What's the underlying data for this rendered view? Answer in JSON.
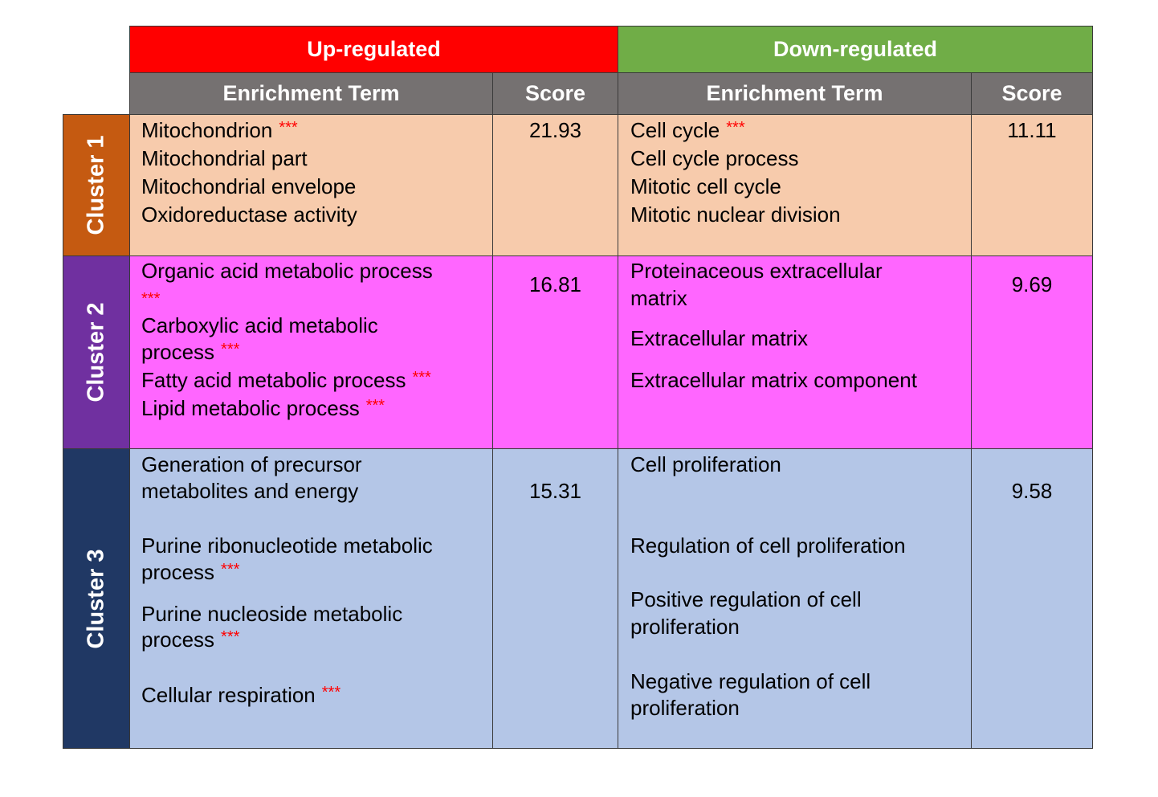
{
  "header": {
    "up_label": "Up-regulated",
    "down_label": "Down-regulated",
    "term_col": "Enrichment Term",
    "score_col": "Score"
  },
  "colors": {
    "up_band": "#ff0000",
    "down_band": "#70ad47",
    "column_header": "#757171",
    "cluster1_side": "#c55a11",
    "cluster1_body": "#f7cbac",
    "cluster2_side": "#7030a0",
    "cluster2_body": "#ff66ff",
    "cluster3_side": "#203864",
    "cluster3_body": "#b4c6e7",
    "significance": "#ff0000"
  },
  "significance_marker": "***",
  "clusters": [
    {
      "label": "Cluster 1",
      "up_score": "21.93",
      "down_score": "11.11",
      "up_terms": [
        {
          "line1": "Mitochondrion",
          "starred": true
        },
        {
          "line1": "Mitochondrial part",
          "starred": false
        },
        {
          "line1": "Mitochondrial envelope",
          "starred": false
        },
        {
          "line1": "Oxidoreductase activity",
          "starred": false
        }
      ],
      "down_terms": [
        {
          "line1": "Cell cycle",
          "starred": true
        },
        {
          "line1": "Cell cycle process",
          "starred": false
        },
        {
          "line1": "Mitotic cell cycle",
          "starred": false
        },
        {
          "line1": "Mitotic nuclear division",
          "starred": false
        }
      ]
    },
    {
      "label": "Cluster 2",
      "up_score": "16.81",
      "down_score": "9.69",
      "up_terms": [
        {
          "line1": "Organic acid metabolic process",
          "starred": true
        },
        {
          "line1": "Carboxylic acid metabolic",
          "line2": "process",
          "starred": true
        },
        {
          "line1": "Fatty acid metabolic process",
          "starred": true
        },
        {
          "line1": "Lipid metabolic process",
          "starred": true
        }
      ],
      "down_terms": [
        {
          "line1": "Proteinaceous extracellular",
          "line2": "matrix",
          "starred": false
        },
        {
          "line1": "Extracellular matrix",
          "starred": false
        },
        {
          "line1": "Extracellular matrix component",
          "starred": false
        }
      ]
    },
    {
      "label": "Cluster 3",
      "up_score": "15.31",
      "down_score": "9.58",
      "up_terms": [
        {
          "line1": "Generation of precursor",
          "line2": "metabolites and energy",
          "starred": false
        },
        {
          "line1": "Purine ribonucleotide metabolic",
          "line2": "process",
          "starred": true
        },
        {
          "line1": "Purine nucleoside metabolic",
          "line2": "process",
          "starred": true
        },
        {
          "line1": "Cellular respiration",
          "starred": true
        }
      ],
      "down_terms": [
        {
          "line1": "Cell proliferation",
          "starred": false
        },
        {
          "line1": "Regulation of cell proliferation",
          "starred": false
        },
        {
          "line1": "Positive regulation of cell",
          "line2": "proliferation",
          "starred": false
        },
        {
          "line1": "Negative regulation of cell",
          "line2": "proliferation",
          "starred": false
        }
      ]
    }
  ]
}
